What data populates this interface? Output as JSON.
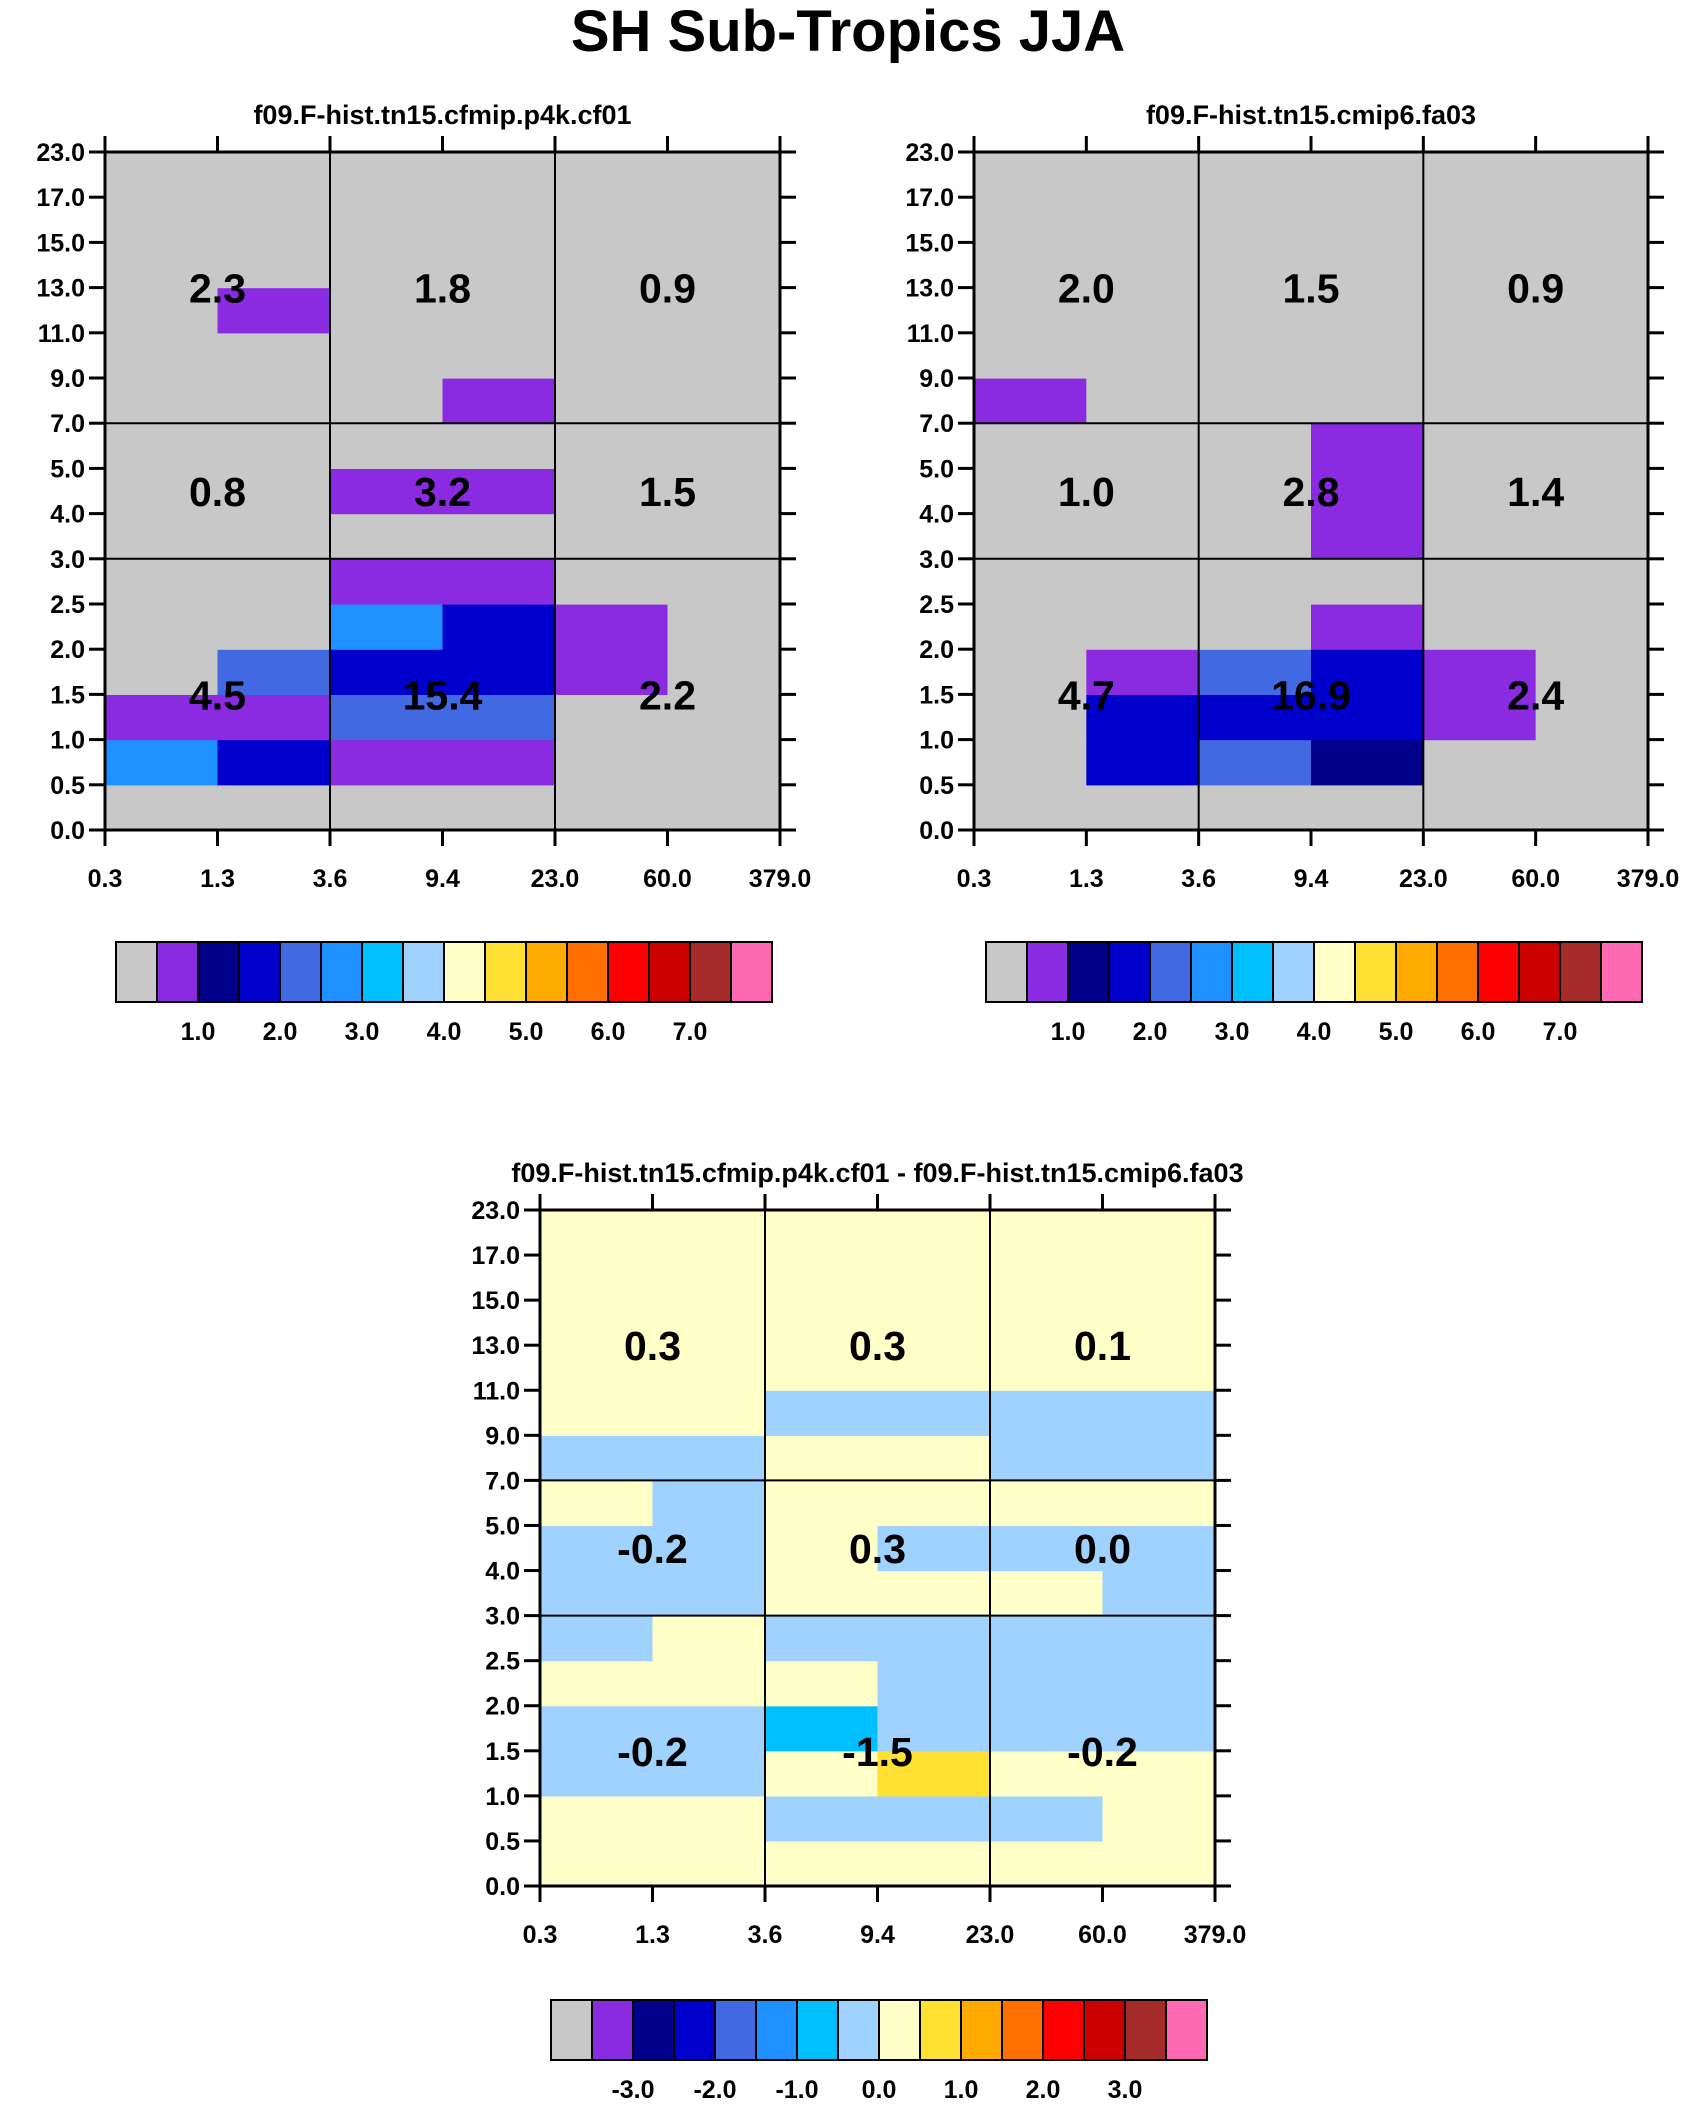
{
  "figure_title": "SH Sub-Tropics JJA",
  "chart_data": [
    {
      "type": "heatmap",
      "title": "f09.F-hist.tn15.cfmip.p4k.cf01",
      "xticks": [
        "0.3",
        "1.3",
        "3.6",
        "9.4",
        "23.0",
        "60.0",
        "379.0"
      ],
      "yticks": [
        "0.0",
        "0.5",
        "1.0",
        "1.5",
        "2.0",
        "2.5",
        "3.0",
        "4.0",
        "5.0",
        "7.0",
        "9.0",
        "11.0",
        "13.0",
        "15.0",
        "17.0",
        "23.0"
      ],
      "cells": [
        [
          0,
          0,
          0,
          0,
          0,
          0
        ],
        [
          2,
          1.4,
          0.3,
          0.3,
          0,
          0
        ],
        [
          0.3,
          0.2,
          1.9,
          1.9,
          0,
          0
        ],
        [
          0,
          1.6,
          1.3,
          1.3,
          0.2,
          0
        ],
        [
          0,
          0,
          2,
          1.3,
          0.4,
          0
        ],
        [
          0,
          0,
          0.3,
          0.3,
          0,
          0
        ],
        [
          0,
          0,
          0,
          0,
          0,
          0
        ],
        [
          0,
          0,
          0.4,
          0.4,
          0,
          0
        ],
        [
          0,
          0,
          0,
          0,
          0,
          0
        ],
        [
          0,
          0,
          0,
          0.3,
          0,
          0
        ],
        [
          0,
          0,
          0,
          0,
          0,
          0
        ],
        [
          0,
          0.3,
          0,
          0,
          0,
          0
        ],
        [
          0,
          0,
          0,
          0,
          0,
          0
        ],
        [
          0,
          0,
          0,
          0,
          0,
          0
        ],
        [
          0,
          0,
          0,
          0,
          0,
          0
        ]
      ],
      "box_values": [
        [
          "4.5",
          "15.4",
          "2.2"
        ],
        [
          "0.8",
          "3.2",
          "1.5"
        ],
        [
          "2.3",
          "1.8",
          "0.9"
        ]
      ],
      "colorbar": {
        "colors": [
          "#c8c8c8",
          "#8a2be2",
          "#00008b",
          "#0000cd",
          "#4169e1",
          "#1e90ff",
          "#00bfff",
          "#a0d2ff",
          "#ffffc8",
          "#ffe033",
          "#ffaa00",
          "#ff6e00",
          "#ff0000",
          "#cd0000",
          "#a52a2a",
          "#ff69b4"
        ],
        "labels": [
          "1.0",
          "2.0",
          "3.0",
          "4.0",
          "5.0",
          "6.0",
          "7.0"
        ],
        "levels": [
          0.1,
          0.5,
          1,
          1.5,
          2,
          2.5,
          3,
          3.5,
          4,
          4.5,
          5,
          5.5,
          6,
          6.5,
          7
        ]
      }
    },
    {
      "type": "heatmap",
      "title": "f09.F-hist.tn15.cmip6.fa03",
      "xticks": [
        "0.3",
        "1.3",
        "3.6",
        "9.4",
        "23.0",
        "60.0",
        "379.0"
      ],
      "yticks": [
        "0.0",
        "0.5",
        "1.0",
        "1.5",
        "2.0",
        "2.5",
        "3.0",
        "4.0",
        "5.0",
        "7.0",
        "9.0",
        "11.0",
        "13.0",
        "15.0",
        "17.0",
        "23.0"
      ],
      "cells": [
        [
          0,
          0,
          0,
          0,
          0,
          0
        ],
        [
          0,
          1.3,
          1.7,
          0.9,
          0,
          0
        ],
        [
          0,
          1.1,
          1.4,
          1.3,
          0.2,
          0
        ],
        [
          0,
          0.3,
          1.7,
          1.3,
          0.4,
          0
        ],
        [
          0,
          0,
          0,
          0.3,
          0,
          0
        ],
        [
          0,
          0,
          0,
          0,
          0,
          0
        ],
        [
          0,
          0,
          0,
          0.3,
          0,
          0
        ],
        [
          0,
          0,
          0,
          0.3,
          0,
          0
        ],
        [
          0,
          0,
          0,
          0.3,
          0,
          0
        ],
        [
          0.3,
          0,
          0,
          0,
          0,
          0
        ],
        [
          0,
          0,
          0,
          0,
          0,
          0
        ],
        [
          0,
          0,
          0,
          0,
          0,
          0
        ],
        [
          0,
          0,
          0,
          0,
          0,
          0
        ],
        [
          0,
          0,
          0,
          0,
          0,
          0
        ],
        [
          0,
          0,
          0,
          0,
          0,
          0
        ]
      ],
      "box_values": [
        [
          "4.7",
          "16.9",
          "2.4"
        ],
        [
          "1.0",
          "2.8",
          "1.4"
        ],
        [
          "2.0",
          "1.5",
          "0.9"
        ]
      ],
      "colorbar": {
        "colors": [
          "#c8c8c8",
          "#8a2be2",
          "#00008b",
          "#0000cd",
          "#4169e1",
          "#1e90ff",
          "#00bfff",
          "#a0d2ff",
          "#ffffc8",
          "#ffe033",
          "#ffaa00",
          "#ff6e00",
          "#ff0000",
          "#cd0000",
          "#a52a2a",
          "#ff69b4"
        ],
        "labels": [
          "1.0",
          "2.0",
          "3.0",
          "4.0",
          "5.0",
          "6.0",
          "7.0"
        ],
        "levels": [
          0.1,
          0.5,
          1,
          1.5,
          2,
          2.5,
          3,
          3.5,
          4,
          4.5,
          5,
          5.5,
          6,
          6.5,
          7
        ]
      }
    },
    {
      "type": "heatmap",
      "title": "f09.F-hist.tn15.cfmip.p4k.cf01 - f09.F-hist.tn15.cmip6.fa03",
      "xticks": [
        "0.3",
        "1.3",
        "3.6",
        "9.4",
        "23.0",
        "60.0",
        "379.0"
      ],
      "yticks": [
        "0.0",
        "0.5",
        "1.0",
        "1.5",
        "2.0",
        "2.5",
        "3.0",
        "4.0",
        "5.0",
        "7.0",
        "9.0",
        "11.0",
        "13.0",
        "15.0",
        "17.0",
        "23.0"
      ],
      "cells": [
        [
          0.1,
          0.1,
          0.1,
          0.1,
          0.1,
          0.1
        ],
        [
          0.1,
          0.1,
          -0.2,
          -0.2,
          -0.2,
          0.1
        ],
        [
          -0.2,
          -0.2,
          0.1,
          0.5,
          0.1,
          0.1
        ],
        [
          -0.2,
          -0.2,
          -1.3,
          -0.8,
          -0.2,
          -0.2
        ],
        [
          0.1,
          0.1,
          0.1,
          -0.2,
          -0.2,
          -0.2
        ],
        [
          -0.2,
          0.1,
          -0.2,
          -0.2,
          -0.2,
          -0.2
        ],
        [
          -0.2,
          -0.2,
          0.1,
          0.1,
          0.1,
          -0.2
        ],
        [
          -0.2,
          -0.2,
          0.1,
          -0.2,
          -0.2,
          -0.2
        ],
        [
          0.1,
          -0.2,
          0.1,
          0.1,
          0.1,
          0.1
        ],
        [
          -0.2,
          -0.2,
          0.1,
          0.1,
          -0.2,
          -0.2
        ],
        [
          0.1,
          0.1,
          -0.2,
          -0.2,
          -0.2,
          -0.2
        ],
        [
          0.1,
          0.1,
          0.1,
          0.1,
          0.1,
          0.1
        ],
        [
          0.1,
          0.1,
          0.1,
          0.1,
          0.1,
          0.1
        ],
        [
          0.1,
          0.1,
          0.1,
          0.1,
          0.1,
          0.1
        ],
        [
          0.1,
          0.1,
          0.1,
          0.1,
          0.1,
          0.1
        ]
      ],
      "box_values": [
        [
          "-0.2",
          "-1.5",
          "-0.2"
        ],
        [
          "-0.2",
          "0.3",
          "0.0"
        ],
        [
          "0.3",
          "0.3",
          "0.1"
        ]
      ],
      "colorbar": {
        "colors": [
          "#c8c8c8",
          "#8a2be2",
          "#00008b",
          "#0000cd",
          "#4169e1",
          "#1e90ff",
          "#00bfff",
          "#a0d2ff",
          "#ffffc8",
          "#ffe033",
          "#ffaa00",
          "#ff6e00",
          "#ff0000",
          "#cd0000",
          "#a52a2a",
          "#ff69b4"
        ],
        "labels": [
          "-3.0",
          "-2.0",
          "-1.0",
          "0.0",
          "1.0",
          "2.0",
          "3.0"
        ],
        "levels": [
          -9999,
          -3.5,
          -3,
          -2.5,
          -2,
          -1.5,
          -1,
          0,
          0.5,
          1,
          1.5,
          2,
          2.5,
          3,
          3.5
        ]
      }
    }
  ]
}
